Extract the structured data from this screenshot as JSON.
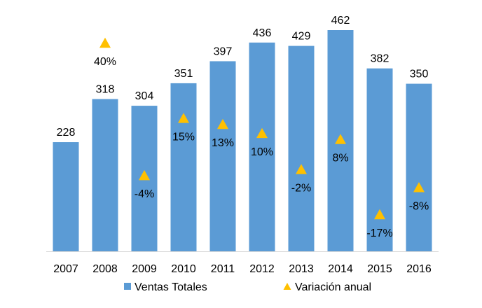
{
  "chart_data": {
    "type": "bar",
    "categories": [
      "2007",
      "2008",
      "2009",
      "2010",
      "2011",
      "2012",
      "2013",
      "2014",
      "2015",
      "2016"
    ],
    "series": [
      {
        "name": "Ventas Totales",
        "kind": "bar",
        "color": "#5B9BD5",
        "values": [
          228,
          318,
          304,
          351,
          397,
          436,
          429,
          462,
          382,
          350
        ],
        "labels": [
          "228",
          "318",
          "304",
          "351",
          "397",
          "436",
          "429",
          "462",
          "382",
          "350"
        ]
      },
      {
        "name": "Variación anual",
        "kind": "marker",
        "marker": "triangle",
        "color": "#FFC000",
        "values": [
          null,
          40,
          -4,
          15,
          13,
          10,
          -2,
          8,
          -17,
          -8
        ],
        "labels": [
          null,
          "40%",
          "-4%",
          "15%",
          "13%",
          "10%",
          "-2%",
          "8%",
          "-17%",
          "-8%"
        ],
        "ylim": [
          -25,
          45
        ]
      }
    ],
    "ylim": [
      0,
      480
    ],
    "title": "",
    "xlabel": "",
    "ylabel": "",
    "grid": false,
    "legend_position": "bottom"
  }
}
